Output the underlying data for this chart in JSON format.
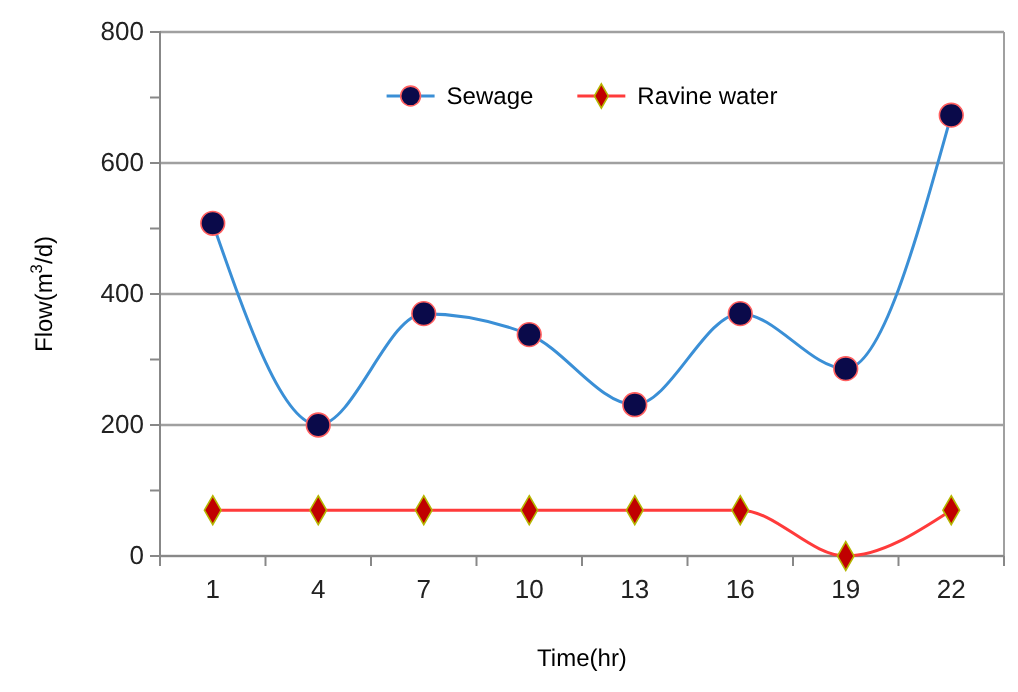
{
  "chart_data": {
    "type": "line",
    "xlabel": "Time(hr)",
    "ylabel": "Flow(m$^{3}$/d)",
    "categories": [
      "1",
      "4",
      "7",
      "10",
      "13",
      "16",
      "19",
      "22"
    ],
    "series": [
      {
        "name": "Sewage",
        "color": "#3a8fd6",
        "marker": "circle",
        "values": [
          508,
          200,
          370,
          338,
          231,
          370,
          286,
          673
        ]
      },
      {
        "name": "Ravine water",
        "color": "#ff3b3b",
        "marker": "diamond",
        "values": [
          70,
          70,
          70,
          70,
          70,
          70,
          0,
          70
        ]
      }
    ],
    "ylim": [
      0,
      800
    ],
    "yticks": [
      0,
      {
        "value": 100,
        "label": null
      },
      200,
      {
        "value": 300,
        "label": null
      },
      400,
      {
        "value": 500,
        "label": null
      },
      600,
      {
        "value": 700,
        "label": null
      },
      800
    ],
    "grid": "y",
    "legend": "top"
  }
}
